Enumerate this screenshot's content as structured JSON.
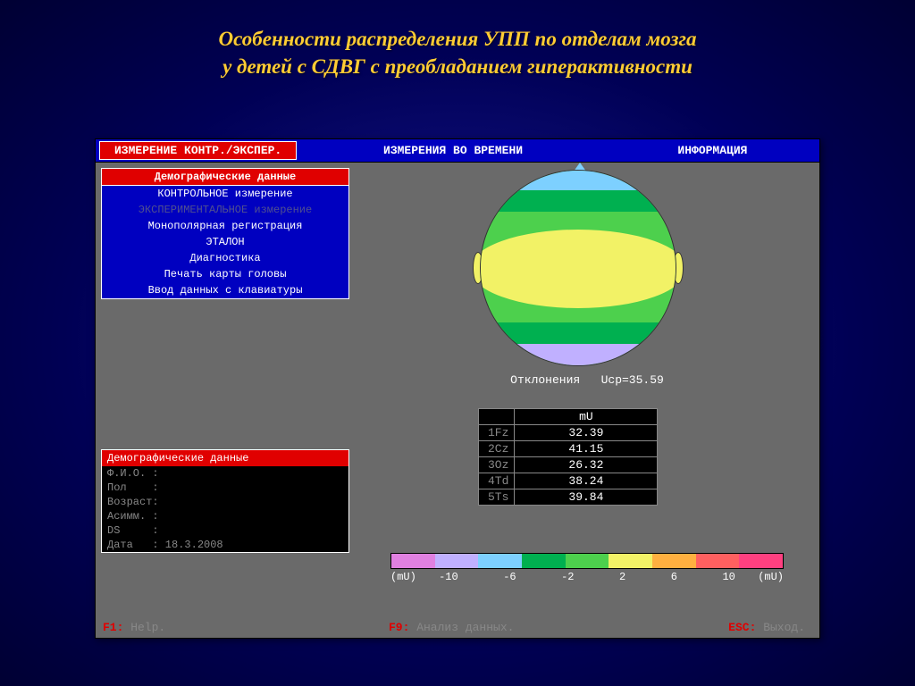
{
  "slide": {
    "title_line1": "Особенности распределения УПП по отделам мозга",
    "title_line2": "у детей с СДВГ с преобладанием гиперактивности"
  },
  "tabs": {
    "active": "ИЗМЕРЕНИЕ КОНТР./ЭКСПЕР.",
    "mid": "ИЗМЕРЕНИЯ ВО ВРЕМЕНИ",
    "right": "ИНФОРМАЦИЯ"
  },
  "menu": {
    "header": "Демографические  данные",
    "items": [
      {
        "label": "КОНТРОЛЬНОЕ измерение",
        "dim": false
      },
      {
        "label": "ЭКСПЕРИМЕНТАЛЬНОЕ измерение",
        "dim": true
      },
      {
        "label": "Монополярная  регистрация",
        "dim": false
      },
      {
        "label": "ЭТАЛОН",
        "dim": false
      },
      {
        "label": "Диагностика",
        "dim": false
      },
      {
        "label": "Печать карты головы",
        "dim": false
      },
      {
        "label": "Ввод данных с клавиатуры",
        "dim": false
      }
    ]
  },
  "demographics": {
    "header": "Демографические данные",
    "rows": [
      {
        "label": "Ф.И.О. :",
        "value": ""
      },
      {
        "label": "Пол    :",
        "value": ""
      },
      {
        "label": "Возраст:",
        "value": ""
      },
      {
        "label": "Асимм. :",
        "value": ""
      },
      {
        "label": "DS     :",
        "value": ""
      },
      {
        "label": "Дата   :",
        "value": " 18.3.2008"
      }
    ]
  },
  "head_map": {
    "caption_label": "Отклонения",
    "caption_metric": "Ucp=35.59",
    "colors": {
      "top": "#a0d8ff",
      "t2": "#00b050",
      "t3": "#4dd04d",
      "mid": "#f2f266",
      "b3": "#4dd04d",
      "b2": "#00b050",
      "bot": "#c0b0ff",
      "ear": "#f2f266"
    }
  },
  "data_table": {
    "unit": "mU",
    "rows": [
      {
        "label": "1Fz",
        "value": "32.39"
      },
      {
        "label": "2Cz",
        "value": "41.15"
      },
      {
        "label": "3Oz",
        "value": "26.32"
      },
      {
        "label": "4Td",
        "value": "38.24"
      },
      {
        "label": "5Ts",
        "value": "39.84"
      }
    ]
  },
  "scale": {
    "unit_left": "(mU)",
    "unit_right": "(mU)",
    "ticks": [
      "-10",
      "-6",
      "-2",
      "2",
      "6",
      "10"
    ],
    "colors": [
      "#e080e0",
      "#c0b0ff",
      "#7dd0ff",
      "#00b050",
      "#4dd04d",
      "#f2f266",
      "#ffb040",
      "#ff6060",
      "#ff4080"
    ]
  },
  "footer": {
    "f1_key": "F1:",
    "f1_label": " Help.",
    "f9_key": "F9:",
    "f9_label": " Анализ данных.",
    "esc_key": "ESC:",
    "esc_label": " Выход."
  }
}
